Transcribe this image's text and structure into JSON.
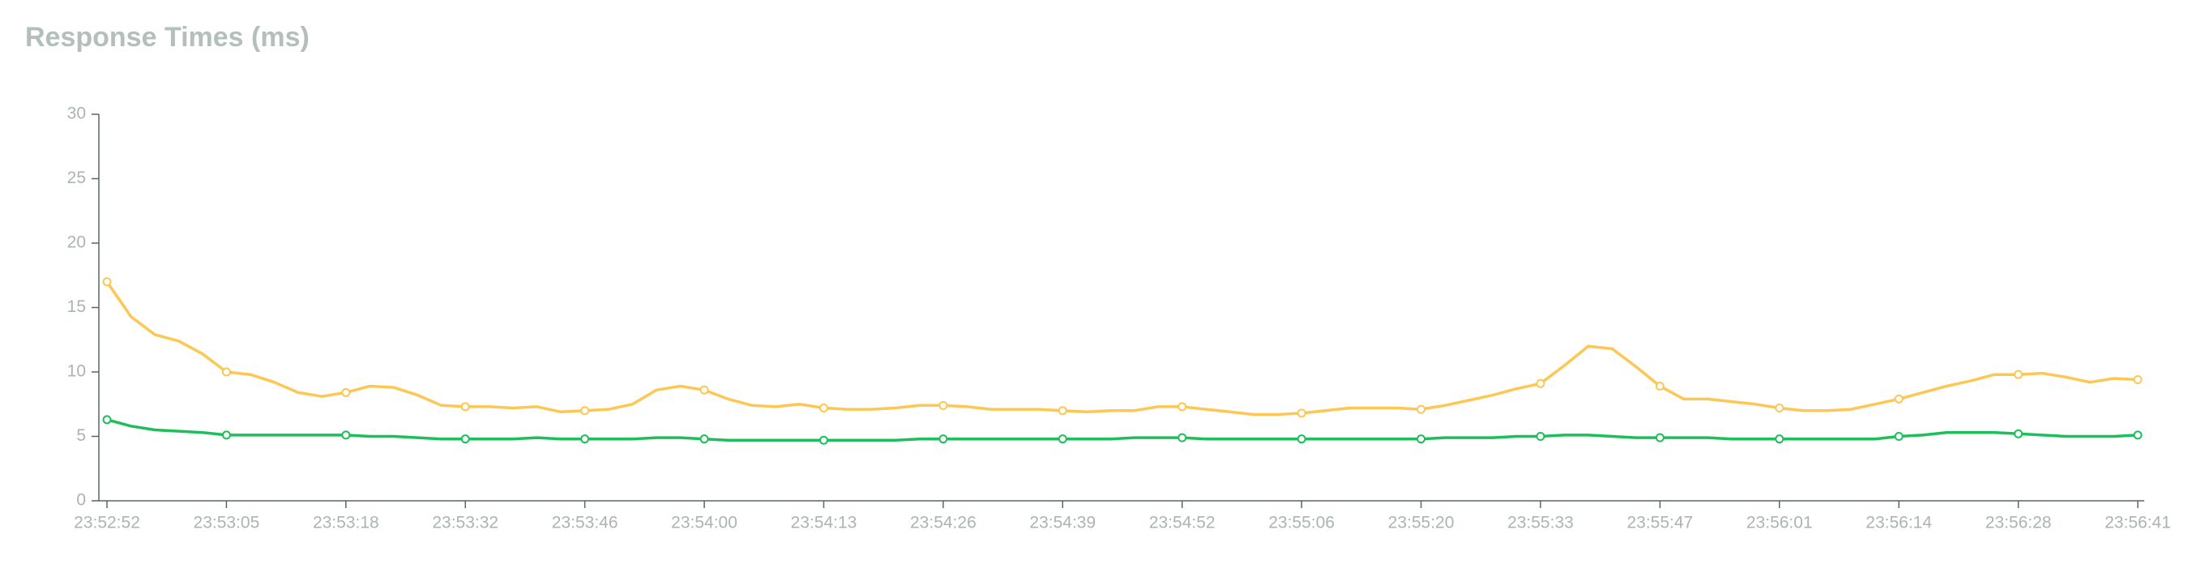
{
  "chart_data": {
    "type": "line",
    "title": "Response Times (ms)",
    "categories": [
      "23:52:52",
      null,
      null,
      null,
      null,
      "23:53:05",
      null,
      null,
      null,
      null,
      "23:53:18",
      null,
      null,
      null,
      null,
      "23:53:32",
      null,
      null,
      null,
      null,
      "23:53:46",
      null,
      null,
      null,
      null,
      "23:54:00",
      null,
      null,
      null,
      null,
      "23:54:13",
      null,
      null,
      null,
      null,
      "23:54:26",
      null,
      null,
      null,
      null,
      "23:54:39",
      null,
      null,
      null,
      null,
      "23:54:52",
      null,
      null,
      null,
      null,
      "23:55:06",
      null,
      null,
      null,
      null,
      "23:55:20",
      null,
      null,
      null,
      null,
      "23:55:33",
      null,
      null,
      null,
      null,
      "23:55:47",
      null,
      null,
      null,
      null,
      "23:56:01",
      null,
      null,
      null,
      null,
      "23:56:14",
      null,
      null,
      null,
      null,
      "23:56:28",
      null,
      null,
      null,
      null,
      "23:56:41"
    ],
    "series": [
      {
        "color": "#fcc753",
        "values": [
          17,
          14.3,
          12.9,
          12.4,
          11.4,
          10.0,
          9.8,
          9.2,
          8.4,
          8.1,
          8.4,
          8.9,
          8.8,
          8.2,
          7.4,
          7.3,
          7.3,
          7.2,
          7.3,
          6.9,
          7.0,
          7.1,
          7.5,
          8.6,
          8.9,
          8.6,
          7.9,
          7.4,
          7.3,
          7.5,
          7.2,
          7.1,
          7.1,
          7.2,
          7.4,
          7.4,
          7.3,
          7.1,
          7.1,
          7.1,
          7.0,
          6.9,
          7.0,
          7.0,
          7.3,
          7.3,
          7.1,
          6.9,
          6.7,
          6.7,
          6.8,
          7.0,
          7.2,
          7.2,
          7.2,
          7.1,
          7.4,
          7.8,
          8.2,
          8.7,
          9.1,
          10.5,
          12.0,
          11.8,
          10.4,
          8.9,
          7.9,
          7.9,
          7.7,
          7.5,
          7.2,
          7.0,
          7.0,
          7.1,
          7.5,
          7.9,
          8.4,
          8.9,
          9.3,
          9.8,
          9.8,
          9.9,
          9.6,
          9.2,
          9.5,
          9.4
        ]
      },
      {
        "color": "#1dbf5a",
        "values": [
          6.3,
          5.8,
          5.5,
          5.4,
          5.3,
          5.1,
          5.1,
          5.1,
          5.1,
          5.1,
          5.1,
          5.0,
          5.0,
          4.9,
          4.8,
          4.8,
          4.8,
          4.8,
          4.9,
          4.8,
          4.8,
          4.8,
          4.8,
          4.9,
          4.9,
          4.8,
          4.7,
          4.7,
          4.7,
          4.7,
          4.7,
          4.7,
          4.7,
          4.7,
          4.8,
          4.8,
          4.8,
          4.8,
          4.8,
          4.8,
          4.8,
          4.8,
          4.8,
          4.9,
          4.9,
          4.9,
          4.8,
          4.8,
          4.8,
          4.8,
          4.8,
          4.8,
          4.8,
          4.8,
          4.8,
          4.8,
          4.9,
          4.9,
          4.9,
          5.0,
          5.0,
          5.1,
          5.1,
          5.0,
          4.9,
          4.9,
          4.9,
          4.9,
          4.8,
          4.8,
          4.8,
          4.8,
          4.8,
          4.8,
          4.8,
          5.0,
          5.1,
          5.3,
          5.3,
          5.3,
          5.2,
          5.1,
          5.0,
          5.0,
          5.0,
          5.1
        ]
      }
    ],
    "ylim": [
      0,
      30
    ],
    "yticks": [
      0,
      5,
      10,
      15,
      20,
      25,
      30
    ],
    "grid": false
  }
}
